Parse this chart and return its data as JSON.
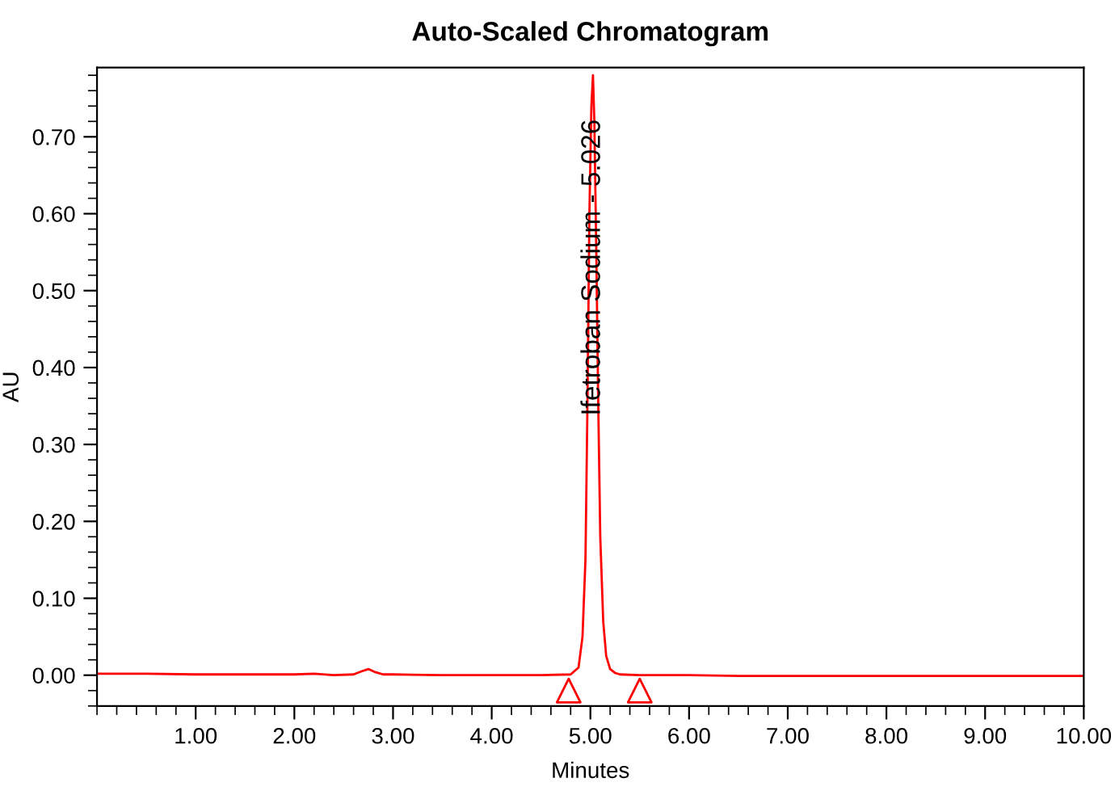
{
  "chart_data": {
    "type": "line",
    "title": "Auto-Scaled Chromatogram",
    "xlabel": "Minutes",
    "ylabel": "AU",
    "series": [
      {
        "color": "#ff0000",
        "x": [
          0,
          0.5,
          1.0,
          1.5,
          2.0,
          2.2,
          2.4,
          2.6,
          2.68,
          2.75,
          2.82,
          2.9,
          3.0,
          3.5,
          4.0,
          4.5,
          4.8,
          4.88,
          4.92,
          4.95,
          4.97,
          4.99,
          5.01,
          5.026,
          5.04,
          5.06,
          5.08,
          5.1,
          5.13,
          5.16,
          5.2,
          5.25,
          5.3,
          5.5,
          6.0,
          6.5,
          7.0,
          8.0,
          9.0,
          10.0
        ],
        "values": [
          0.002,
          0.002,
          0.001,
          0.001,
          0.001,
          0.002,
          0.0,
          0.001,
          0.005,
          0.008,
          0.004,
          0.001,
          0.001,
          0.0,
          0.0,
          0.0,
          0.001,
          0.01,
          0.05,
          0.15,
          0.35,
          0.6,
          0.74,
          0.78,
          0.72,
          0.55,
          0.35,
          0.18,
          0.07,
          0.025,
          0.008,
          0.003,
          0.001,
          0.0,
          0.0,
          -0.001,
          -0.001,
          -0.001,
          -0.001,
          -0.001
        ]
      },
      {
        "type": "scatter",
        "marker": "triangle",
        "color": "#ff0000",
        "x": [
          4.78,
          5.5
        ],
        "values": [
          -0.02,
          -0.02
        ]
      }
    ],
    "annotations": [
      {
        "text": "Ifetroban Sodium - 5.026",
        "x": 5.026,
        "y": 0.53
      }
    ],
    "xlim": [
      0,
      10
    ],
    "ylim": [
      -0.04,
      0.79
    ],
    "xticks": [
      {
        "value": 1,
        "label": "1.00"
      },
      {
        "value": 2,
        "label": "2.00"
      },
      {
        "value": 3,
        "label": "3.00"
      },
      {
        "value": 4,
        "label": "4.00"
      },
      {
        "value": 5,
        "label": "5.00"
      },
      {
        "value": 6,
        "label": "6.00"
      },
      {
        "value": 7,
        "label": "7.00"
      },
      {
        "value": 8,
        "label": "8.00"
      },
      {
        "value": 9,
        "label": "9.00"
      },
      {
        "value": 10,
        "label": "10.00"
      }
    ],
    "yticks": [
      {
        "value": 0,
        "label": "0.00"
      },
      {
        "value": 0.1,
        "label": "0.10"
      },
      {
        "value": 0.2,
        "label": "0.20"
      },
      {
        "value": 0.3,
        "label": "0.30"
      },
      {
        "value": 0.4,
        "label": "0.40"
      },
      {
        "value": 0.5,
        "label": "0.50"
      },
      {
        "value": 0.6,
        "label": "0.60"
      },
      {
        "value": 0.7,
        "label": "0.70"
      }
    ],
    "grid": false,
    "legend": false
  }
}
